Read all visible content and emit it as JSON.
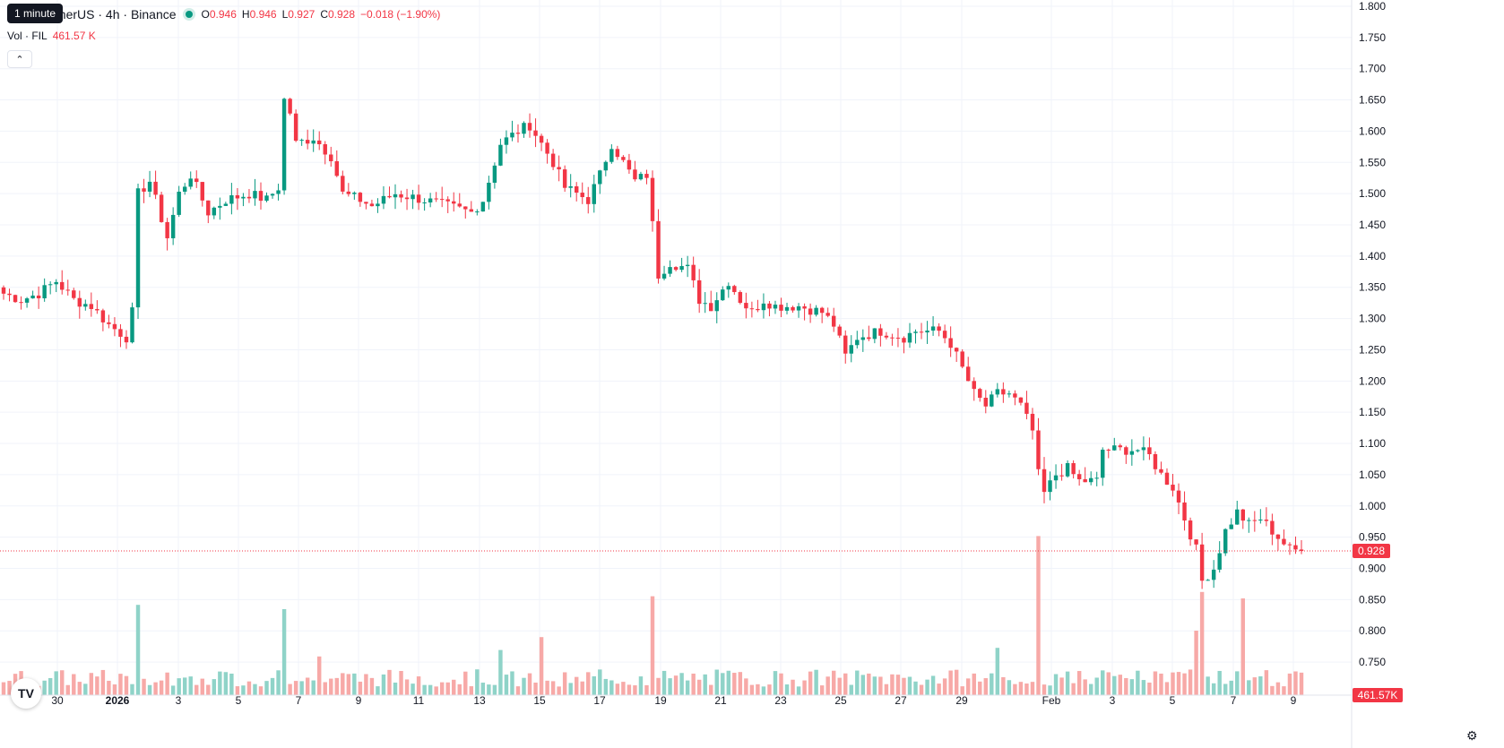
{
  "header": {
    "tooltip": "1 minute",
    "symbol": "FIL / TetherUS · 4h · Binance",
    "o_label": "O",
    "o": "0.946",
    "h_label": "H",
    "h": "0.946",
    "l_label": "L",
    "l": "0.927",
    "c_label": "C",
    "c": "0.928",
    "change": "−0.018 (−1.90%)"
  },
  "volume_legend": {
    "label": "Vol · FIL",
    "value": "461.57 K"
  },
  "icons": {
    "collapse": "chevron-up-icon",
    "logo": "tradingview-logo-icon",
    "settings": "gear-icon"
  },
  "colors": {
    "up": "#089981",
    "down": "#f23645",
    "up_vol": "#8fd3c8",
    "down_vol": "#f7a9a7"
  },
  "chart_data": {
    "type": "candlestick",
    "interval": "4h",
    "price_axis": {
      "min": 0.72,
      "max": 1.81,
      "ticks": [
        "1.800",
        "1.750",
        "1.700",
        "1.650",
        "1.600",
        "1.550",
        "1.500",
        "1.450",
        "1.400",
        "1.350",
        "1.300",
        "1.250",
        "1.200",
        "1.150",
        "1.100",
        "1.050",
        "1.000",
        "0.950",
        "0.900",
        "0.850",
        "0.800",
        "0.750"
      ]
    },
    "x_axis_labels": [
      "30",
      "2026",
      "3",
      "5",
      "7",
      "9",
      "11",
      "13",
      "15",
      "17",
      "19",
      "21",
      "23",
      "25",
      "27",
      "29",
      "Feb",
      "3",
      "5",
      "7",
      "9"
    ],
    "last_price": "0.928",
    "last_volume": "461.57K",
    "close_path": [
      [
        0,
        1.34
      ],
      [
        3,
        1.33
      ],
      [
        6,
        1.34
      ],
      [
        9,
        1.36
      ],
      [
        12,
        1.33
      ],
      [
        15,
        1.32
      ],
      [
        18,
        1.29
      ],
      [
        21,
        1.27
      ],
      [
        22,
        1.31
      ],
      [
        23,
        1.5
      ],
      [
        25,
        1.52
      ],
      [
        28,
        1.43
      ],
      [
        30,
        1.5
      ],
      [
        32,
        1.53
      ],
      [
        35,
        1.47
      ],
      [
        38,
        1.49
      ],
      [
        42,
        1.5
      ],
      [
        45,
        1.49
      ],
      [
        47,
        1.51
      ],
      [
        48,
        1.65
      ],
      [
        49,
        1.63
      ],
      [
        50,
        1.58
      ],
      [
        53,
        1.59
      ],
      [
        56,
        1.56
      ],
      [
        58,
        1.5
      ],
      [
        61,
        1.49
      ],
      [
        63,
        1.48
      ],
      [
        67,
        1.5
      ],
      [
        72,
        1.49
      ],
      [
        76,
        1.48
      ],
      [
        80,
        1.47
      ],
      [
        82,
        1.49
      ],
      [
        85,
        1.58
      ],
      [
        88,
        1.6
      ],
      [
        90,
        1.61
      ],
      [
        92,
        1.58
      ],
      [
        94,
        1.55
      ],
      [
        96,
        1.51
      ],
      [
        98,
        1.5
      ],
      [
        100,
        1.49
      ],
      [
        102,
        1.53
      ],
      [
        104,
        1.58
      ],
      [
        106,
        1.55
      ],
      [
        108,
        1.52
      ],
      [
        110,
        1.53
      ],
      [
        111,
        1.45
      ],
      [
        112,
        1.37
      ],
      [
        114,
        1.39
      ],
      [
        117,
        1.38
      ],
      [
        119,
        1.33
      ],
      [
        121,
        1.32
      ],
      [
        124,
        1.36
      ],
      [
        126,
        1.33
      ],
      [
        128,
        1.31
      ],
      [
        130,
        1.33
      ],
      [
        132,
        1.32
      ],
      [
        136,
        1.32
      ],
      [
        140,
        1.31
      ],
      [
        142,
        1.29
      ],
      [
        144,
        1.24
      ],
      [
        146,
        1.27
      ],
      [
        150,
        1.28
      ],
      [
        154,
        1.27
      ],
      [
        156,
        1.28
      ],
      [
        160,
        1.28
      ],
      [
        162,
        1.26
      ],
      [
        164,
        1.22
      ],
      [
        166,
        1.18
      ],
      [
        168,
        1.16
      ],
      [
        170,
        1.18
      ],
      [
        172,
        1.18
      ],
      [
        174,
        1.16
      ],
      [
        176,
        1.12
      ],
      [
        177,
        1.05
      ],
      [
        178,
        1.02
      ],
      [
        180,
        1.05
      ],
      [
        182,
        1.06
      ],
      [
        184,
        1.04
      ],
      [
        187,
        1.04
      ],
      [
        188,
        1.09
      ],
      [
        191,
        1.09
      ],
      [
        194,
        1.09
      ],
      [
        196,
        1.08
      ],
      [
        198,
        1.05
      ],
      [
        200,
        1.03
      ],
      [
        202,
        0.98
      ],
      [
        204,
        0.93
      ],
      [
        205,
        0.88
      ],
      [
        207,
        0.9
      ],
      [
        209,
        0.96
      ],
      [
        211,
        0.99
      ],
      [
        213,
        0.97
      ],
      [
        215,
        0.98
      ],
      [
        217,
        0.96
      ],
      [
        219,
        0.94
      ],
      [
        220,
        0.93
      ],
      [
        222,
        0.928
      ]
    ],
    "volume_spikes": {
      "23": 0.42,
      "48": 0.4,
      "54": 0.18,
      "85": 0.21,
      "92": 0.27,
      "111": 0.46,
      "170": 0.22,
      "177": 0.74,
      "204": 0.3,
      "205": 0.48,
      "212": 0.45
    }
  }
}
